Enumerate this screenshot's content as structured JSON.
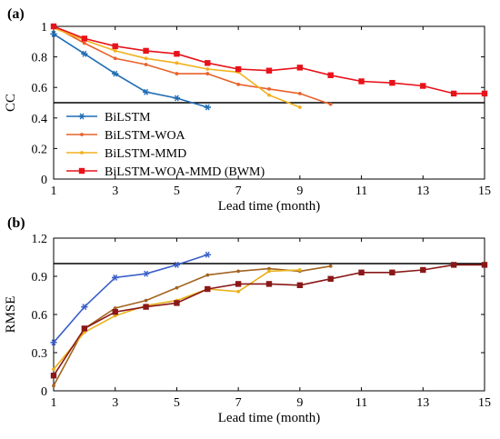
{
  "chart_data": [
    {
      "type": "line",
      "panel_label": "(a)",
      "xlabel": "Lead time (month)",
      "ylabel": "CC",
      "xlim": [
        1,
        15
      ],
      "ylim": [
        0,
        1
      ],
      "xticks": [
        1,
        3,
        5,
        7,
        9,
        11,
        13,
        15
      ],
      "yticks": [
        0,
        0.2,
        0.4,
        0.6,
        0.8,
        1
      ],
      "ytick_labels": [
        "0",
        "0.2",
        "0.4",
        "0.6",
        "0.8",
        "1"
      ],
      "threshold": 0.5,
      "threshold_color": "#000000",
      "grid": false,
      "legend_position": "bottom-left",
      "series": [
        {
          "name": "BiLSTM",
          "color": "#1f6db4",
          "marker": "asterisk",
          "x": [
            1,
            2,
            3,
            4,
            5,
            6
          ],
          "y": [
            0.95,
            0.82,
            0.69,
            0.57,
            0.53,
            0.47
          ]
        },
        {
          "name": "BiLSTM-WOA",
          "color": "#e8622a",
          "marker": "dot",
          "x": [
            1,
            2,
            3,
            4,
            5,
            6,
            7,
            8,
            9,
            10
          ],
          "y": [
            1.0,
            0.89,
            0.79,
            0.75,
            0.69,
            0.69,
            0.62,
            0.59,
            0.56,
            0.49
          ]
        },
        {
          "name": "BiLSTM-MMD",
          "color": "#f2b01e",
          "marker": "dot",
          "x": [
            1,
            2,
            3,
            4,
            5,
            6,
            7,
            8,
            9
          ],
          "y": [
            0.99,
            0.91,
            0.84,
            0.79,
            0.76,
            0.72,
            0.7,
            0.55,
            0.47
          ]
        },
        {
          "name": "BiLSTM-WOA-MMD (BWM)",
          "color": "#e8121a",
          "marker": "square",
          "x": [
            1,
            2,
            3,
            4,
            5,
            6,
            7,
            8,
            9,
            10,
            11,
            12,
            13,
            14,
            15
          ],
          "y": [
            1.0,
            0.92,
            0.87,
            0.84,
            0.82,
            0.76,
            0.72,
            0.71,
            0.73,
            0.68,
            0.64,
            0.63,
            0.61,
            0.56,
            0.56
          ]
        }
      ]
    },
    {
      "type": "line",
      "panel_label": "(b)",
      "xlabel": "Lead time (month)",
      "ylabel": "RMSE",
      "xlim": [
        1,
        15
      ],
      "ylim": [
        0,
        1.2
      ],
      "xticks": [
        1,
        3,
        5,
        7,
        9,
        11,
        13,
        15
      ],
      "yticks": [
        0,
        0.3,
        0.6,
        0.9,
        1.2
      ],
      "ytick_labels": [
        "0",
        "0.3",
        "0.6",
        "0.9",
        "1.2"
      ],
      "threshold": 1.0,
      "threshold_color": "#000000",
      "grid": false,
      "series": [
        {
          "name": "BiLSTM",
          "color": "#3a5fc8",
          "marker": "asterisk",
          "x": [
            1,
            2,
            3,
            4,
            5,
            6
          ],
          "y": [
            0.38,
            0.66,
            0.89,
            0.92,
            0.99,
            1.07
          ]
        },
        {
          "name": "BiLSTM-WOA",
          "color": "#a26420",
          "marker": "dot",
          "x": [
            1,
            2,
            3,
            4,
            5,
            6,
            7,
            8,
            9,
            10
          ],
          "y": [
            0.04,
            0.49,
            0.65,
            0.71,
            0.81,
            0.91,
            0.94,
            0.96,
            0.94,
            0.98
          ]
        },
        {
          "name": "BiLSTM-MMD",
          "color": "#e8b21a",
          "marker": "dot",
          "x": [
            1,
            2,
            3,
            4,
            5,
            6,
            7,
            8,
            9
          ],
          "y": [
            0.17,
            0.46,
            0.59,
            0.67,
            0.71,
            0.8,
            0.78,
            0.94,
            0.95
          ]
        },
        {
          "name": "BiLSTM-WOA-MMD (BWM)",
          "color": "#8a1818",
          "marker": "square",
          "x": [
            1,
            2,
            3,
            4,
            5,
            6,
            7,
            8,
            9,
            10,
            11,
            12,
            13,
            14,
            15
          ],
          "y": [
            0.12,
            0.49,
            0.62,
            0.66,
            0.69,
            0.8,
            0.84,
            0.84,
            0.83,
            0.88,
            0.93,
            0.93,
            0.95,
            0.99,
            0.99
          ]
        }
      ]
    }
  ]
}
